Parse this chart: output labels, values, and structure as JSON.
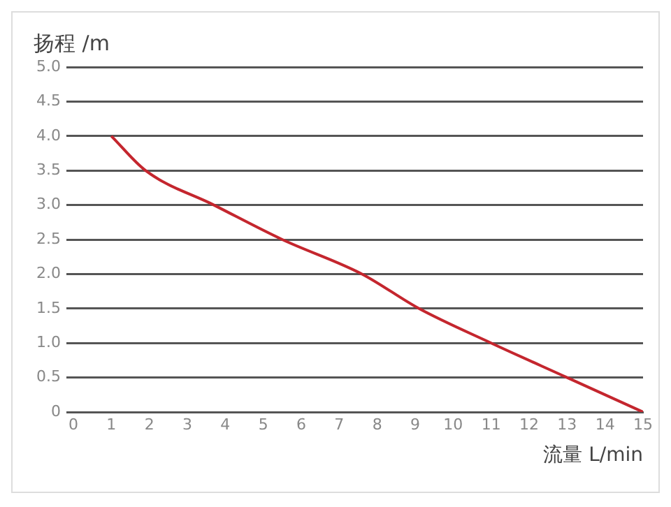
{
  "chart_data": {
    "type": "line",
    "xlabel": "流量 L/min",
    "ylabel": "扬程 /m",
    "series": [
      {
        "color": "#c4262e",
        "x": [
          1,
          1.9,
          3.7,
          5.5,
          7.6,
          9.1,
          11,
          13,
          15
        ],
        "values": [
          4,
          3.5,
          3,
          2.5,
          2,
          1.5,
          1,
          0.5,
          0
        ]
      }
    ],
    "xlim": [
      0,
      15
    ],
    "xticks": [
      0,
      1,
      2,
      3,
      4,
      5,
      6,
      7,
      8,
      9,
      10,
      11,
      12,
      13,
      14,
      15
    ],
    "ylim": [
      0,
      5
    ],
    "yticks": [
      0,
      {
        "value": 0.5,
        "label": "0.5"
      },
      {
        "value": 1,
        "label": "1.0"
      },
      {
        "value": 1.5,
        "label": "1.5"
      },
      {
        "value": 2,
        "label": "2.0"
      },
      {
        "value": 2.5,
        "label": "2.5"
      },
      {
        "value": 3,
        "label": "3.0"
      },
      {
        "value": 3.5,
        "label": "3.5"
      },
      {
        "value": 4,
        "label": "4.0"
      },
      {
        "value": 4.5,
        "label": "4.5"
      },
      {
        "value": 5,
        "label": "5.0"
      }
    ],
    "grid": "y",
    "legend": false,
    "marker": "none",
    "line_style": "solid"
  }
}
